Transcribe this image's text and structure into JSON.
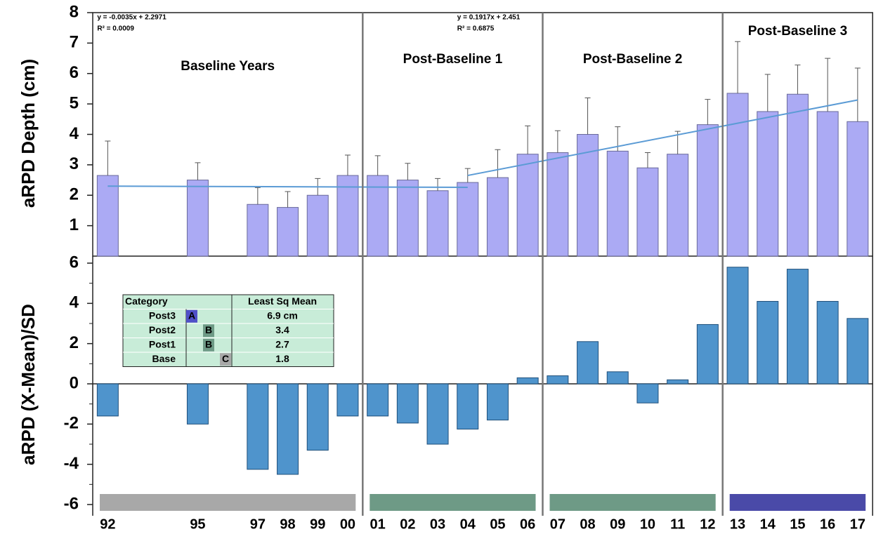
{
  "chart_data": {
    "type": "bar",
    "categories": [
      "92",
      null,
      null,
      "95",
      null,
      "97",
      "98",
      "99",
      "00",
      "01",
      "02",
      "03",
      "04",
      "05",
      "06",
      "07",
      "08",
      "09",
      "10",
      "11",
      "12",
      "13",
      "14",
      "15",
      "16",
      "17"
    ],
    "periods": [
      {
        "name": "Baseline Years",
        "start": "92",
        "end": "00",
        "color": "#a8a8a8"
      },
      {
        "name": "Post-Baseline 1",
        "start": "01",
        "end": "06",
        "color": "#6e9a86"
      },
      {
        "name": "Post-Baseline 2",
        "start": "07",
        "end": "12",
        "color": "#6e9a86"
      },
      {
        "name": "Post-Baseline 3",
        "start": "13",
        "end": "17",
        "color": "#4a4aa8"
      }
    ],
    "panels": [
      {
        "ylabel": "aRPD Depth (cm)",
        "ylim": [
          0,
          8
        ],
        "yticks": [
          1,
          2,
          3,
          4,
          5,
          6,
          7,
          8
        ],
        "color": "#abaaf4",
        "values": [
          2.65,
          null,
          null,
          2.5,
          null,
          1.7,
          1.6,
          2.0,
          2.65,
          2.65,
          2.5,
          2.15,
          2.42,
          2.58,
          3.35,
          3.4,
          4.0,
          3.45,
          2.9,
          3.35,
          4.32,
          5.35,
          4.75,
          5.32,
          4.75,
          4.42
        ],
        "errors": [
          1.13,
          null,
          null,
          0.57,
          null,
          0.55,
          0.52,
          0.55,
          0.67,
          0.65,
          0.55,
          0.4,
          0.46,
          0.92,
          0.93,
          0.72,
          1.2,
          0.8,
          0.5,
          0.75,
          0.83,
          1.7,
          1.22,
          0.96,
          1.75,
          1.76
        ],
        "trendlines": [
          {
            "equation": "y = -0.0035x + 2.2971",
            "r2": "R² = 0.0009",
            "x": [
              "92",
              "04"
            ],
            "y": [
              2.3,
              2.26
            ],
            "color": "#5b9bd5"
          },
          {
            "equation": "y = 0.1917x + 2.451",
            "r2": "R² = 0.6875",
            "x": [
              "04",
              "17"
            ],
            "y": [
              2.65,
              5.13
            ],
            "color": "#5b9bd5"
          }
        ]
      },
      {
        "ylabel": "aRPD (X-Mean)/SD",
        "ylim": [
          -6,
          6
        ],
        "yticks": [
          -6,
          -4,
          -2,
          0,
          2,
          4,
          6
        ],
        "color": "#4f94cc",
        "values": [
          -1.6,
          null,
          null,
          -2.0,
          null,
          -4.25,
          -4.5,
          -3.3,
          -1.6,
          -1.6,
          -1.95,
          -3.0,
          -2.25,
          -1.8,
          0.3,
          0.4,
          2.1,
          0.6,
          -0.95,
          0.2,
          2.95,
          5.8,
          4.1,
          5.7,
          4.1,
          3.25
        ]
      }
    ],
    "table": {
      "headers": [
        "Category",
        "Least Sq Mean"
      ],
      "rows": [
        [
          "Post3",
          "A",
          "6.9 cm"
        ],
        [
          "Post2",
          "B",
          "3.4"
        ],
        [
          "Post1",
          "B",
          "2.7"
        ],
        [
          "Base",
          "C",
          "1.8"
        ]
      ]
    }
  }
}
